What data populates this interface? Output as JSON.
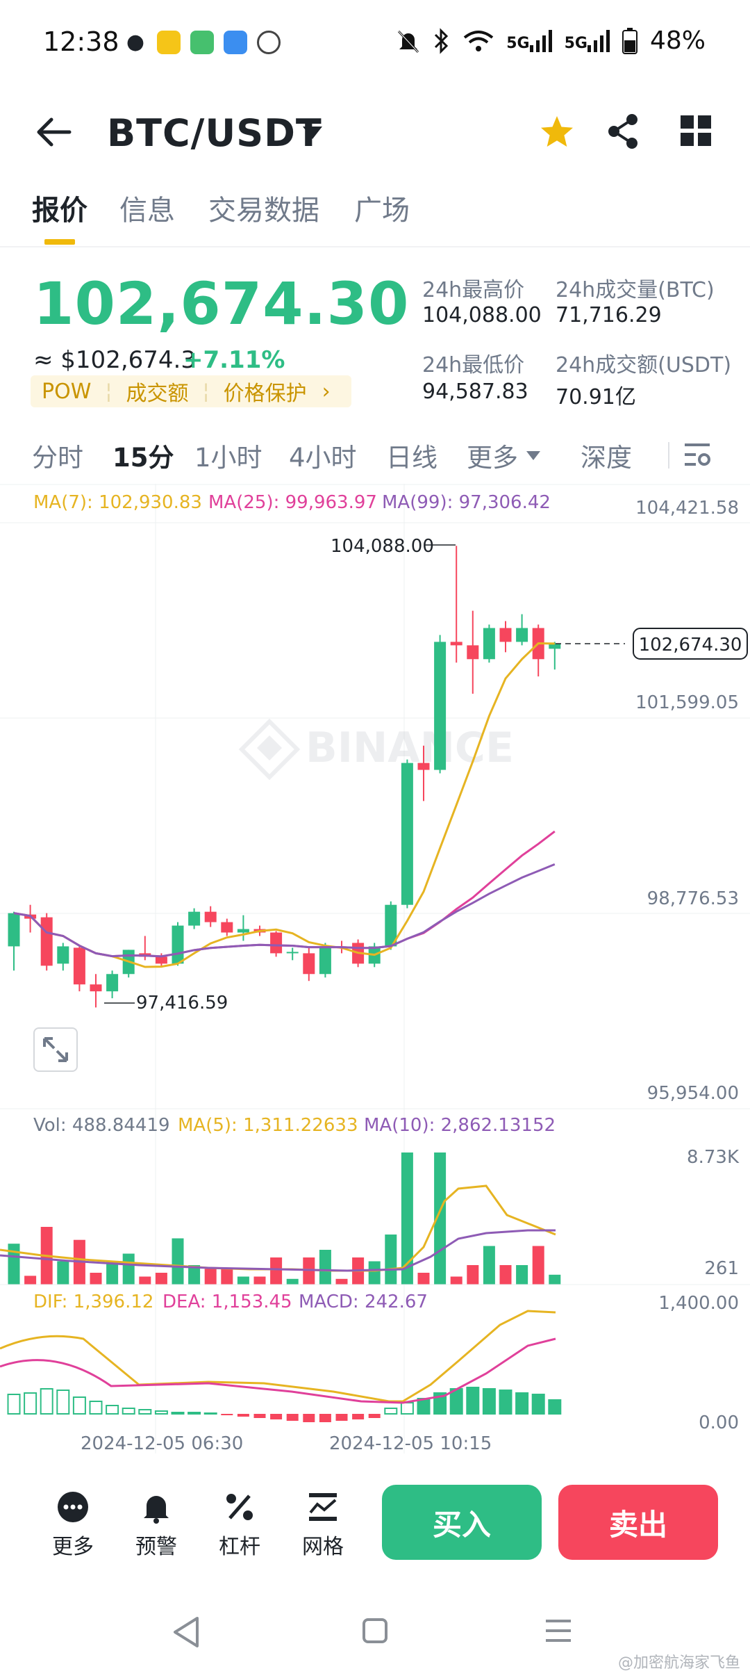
{
  "status_bar": {
    "time": "12:38",
    "battery": "48%",
    "net1": "5G",
    "net2": "5G"
  },
  "header": {
    "pair": "BTC/USDT"
  },
  "tabs": [
    "报价",
    "信息",
    "交易数据",
    "广场"
  ],
  "price": {
    "last": "102,674.30",
    "usd": "≈ $102,674.3",
    "change": "+7.11%",
    "tags": [
      "POW",
      "成交额",
      "价格保护"
    ]
  },
  "stats": {
    "high_label": "24h最高价",
    "high": "104,088.00",
    "low_label": "24h最低价",
    "low": "94,587.83",
    "vol_btc_label": "24h成交量(BTC)",
    "vol_btc": "71,716.29",
    "vol_usdt_label": "24h成交额(USDT)",
    "vol_usdt": "70.91亿"
  },
  "intervals": [
    "分时",
    "15分",
    "1小时",
    "4小时",
    "日线",
    "更多",
    "深度"
  ],
  "ma_legend": {
    "ma7": "MA(7): 102,930.83",
    "ma25": "MA(25): 99,963.97",
    "ma99": "MA(99): 97,306.42"
  },
  "price_axis": [
    "104,421.58",
    "101,599.05",
    "98,776.53",
    "95,954.00"
  ],
  "annotations": {
    "high": "104,088.00",
    "low": "97,416.59",
    "current": "102,674.30"
  },
  "watermark": "BINANCE",
  "vol_legend": {
    "vol": "Vol: 488.84419",
    "ma5": "MA(5): 1,311.22633",
    "ma10": "MA(10): 2,862.13152"
  },
  "vol_axis": [
    "8.73K",
    "261"
  ],
  "macd_legend": {
    "dif": "DIF: 1,396.12",
    "dea": "DEA: 1,153.45",
    "macd": "MACD: 242.67"
  },
  "macd_axis": [
    "1,400.00",
    "0.00"
  ],
  "time_axis": [
    "2024-12-05 06:30",
    "2024-12-05 10:15"
  ],
  "bottom": {
    "more": "更多",
    "alert": "预警",
    "leverage": "杠杆",
    "grid": "网格",
    "buy": "买入",
    "sell": "卖出"
  },
  "footer_mark": "@加密航海家飞鱼",
  "colors": {
    "up": "#2ebd85",
    "down": "#f6465d",
    "accent": "#f0b90b",
    "ma7": "#e6b422",
    "ma25": "#e0409a",
    "ma99": "#8e5bb5"
  },
  "chart_data": {
    "type": "candlestick",
    "interval": "15m",
    "ylim": [
      95954.0,
      104421.58
    ],
    "candles": [
      {
        "o": 98300,
        "h": 98800,
        "l": 97950,
        "c": 98780
      },
      {
        "o": 98760,
        "h": 98900,
        "l": 98500,
        "c": 98700
      },
      {
        "o": 98720,
        "h": 98780,
        "l": 97950,
        "c": 98020
      },
      {
        "o": 98050,
        "h": 98350,
        "l": 97950,
        "c": 98300
      },
      {
        "o": 98280,
        "h": 98300,
        "l": 97650,
        "c": 97750
      },
      {
        "o": 97750,
        "h": 97900,
        "l": 97417,
        "c": 97650
      },
      {
        "o": 97650,
        "h": 97950,
        "l": 97550,
        "c": 97900
      },
      {
        "o": 97900,
        "h": 98250,
        "l": 97850,
        "c": 98250
      },
      {
        "o": 98200,
        "h": 98450,
        "l": 98100,
        "c": 98150
      },
      {
        "o": 98150,
        "h": 98200,
        "l": 98000,
        "c": 98050
      },
      {
        "o": 98050,
        "h": 98650,
        "l": 98020,
        "c": 98600
      },
      {
        "o": 98600,
        "h": 98850,
        "l": 98550,
        "c": 98800
      },
      {
        "o": 98800,
        "h": 98880,
        "l": 98580,
        "c": 98650
      },
      {
        "o": 98650,
        "h": 98700,
        "l": 98450,
        "c": 98500
      },
      {
        "o": 98500,
        "h": 98750,
        "l": 98380,
        "c": 98550
      },
      {
        "o": 98550,
        "h": 98600,
        "l": 98450,
        "c": 98500
      },
      {
        "o": 98500,
        "h": 98520,
        "l": 98150,
        "c": 98200
      },
      {
        "o": 98200,
        "h": 98280,
        "l": 98100,
        "c": 98220
      },
      {
        "o": 98200,
        "h": 98300,
        "l": 97800,
        "c": 97900
      },
      {
        "o": 97900,
        "h": 98350,
        "l": 97850,
        "c": 98300
      },
      {
        "o": 98300,
        "h": 98380,
        "l": 98200,
        "c": 98280
      },
      {
        "o": 98350,
        "h": 98400,
        "l": 98000,
        "c": 98050
      },
      {
        "o": 98050,
        "h": 98350,
        "l": 98000,
        "c": 98300
      },
      {
        "o": 98300,
        "h": 98950,
        "l": 98250,
        "c": 98900
      },
      {
        "o": 98900,
        "h": 101000,
        "l": 98850,
        "c": 100950
      },
      {
        "o": 100950,
        "h": 101200,
        "l": 100400,
        "c": 100850
      },
      {
        "o": 100850,
        "h": 102800,
        "l": 100800,
        "c": 102700
      },
      {
        "o": 102700,
        "h": 104088,
        "l": 102400,
        "c": 102650
      },
      {
        "o": 102650,
        "h": 103150,
        "l": 101950,
        "c": 102450
      },
      {
        "o": 102450,
        "h": 102950,
        "l": 102400,
        "c": 102900
      },
      {
        "o": 102900,
        "h": 103000,
        "l": 102550,
        "c": 102700
      },
      {
        "o": 102700,
        "h": 103100,
        "l": 102650,
        "c": 102900
      },
      {
        "o": 102900,
        "h": 102950,
        "l": 102200,
        "c": 102450
      },
      {
        "o": 102600,
        "h": 102700,
        "l": 102300,
        "c": 102674.3
      }
    ]
  }
}
